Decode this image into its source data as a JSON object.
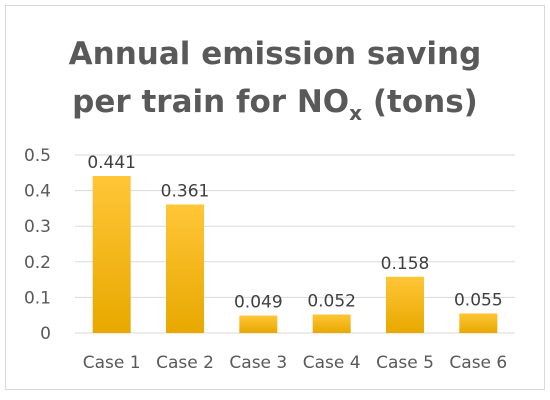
{
  "chart_data": {
    "type": "bar",
    "title_main": "Annual emission saving",
    "title_line2_prefix": "per train for NO",
    "title_line2_sub": "x",
    "title_line2_suffix": " (tons)",
    "xlabel": "",
    "ylabel": "",
    "categories": [
      "Case 1",
      "Case 2",
      "Case 3",
      "Case 4",
      "Case 5",
      "Case 6"
    ],
    "values": [
      0.441,
      0.361,
      0.049,
      0.052,
      0.158,
      0.055
    ],
    "data_labels": [
      "0.441",
      "0.361",
      "0.049",
      "0.052",
      "0.158",
      "0.055"
    ],
    "ylim": [
      0,
      0.5
    ],
    "yticks": [
      0,
      0.1,
      0.2,
      0.3,
      0.4,
      0.5
    ],
    "ytick_labels": [
      "0",
      "0.1",
      "0.2",
      "0.3",
      "0.4",
      "0.5"
    ],
    "grid": true,
    "legend": "none",
    "bar_color_top": "#ffc637",
    "bar_color_bottom": "#e8a800",
    "grid_color": "#d9d9d9"
  }
}
